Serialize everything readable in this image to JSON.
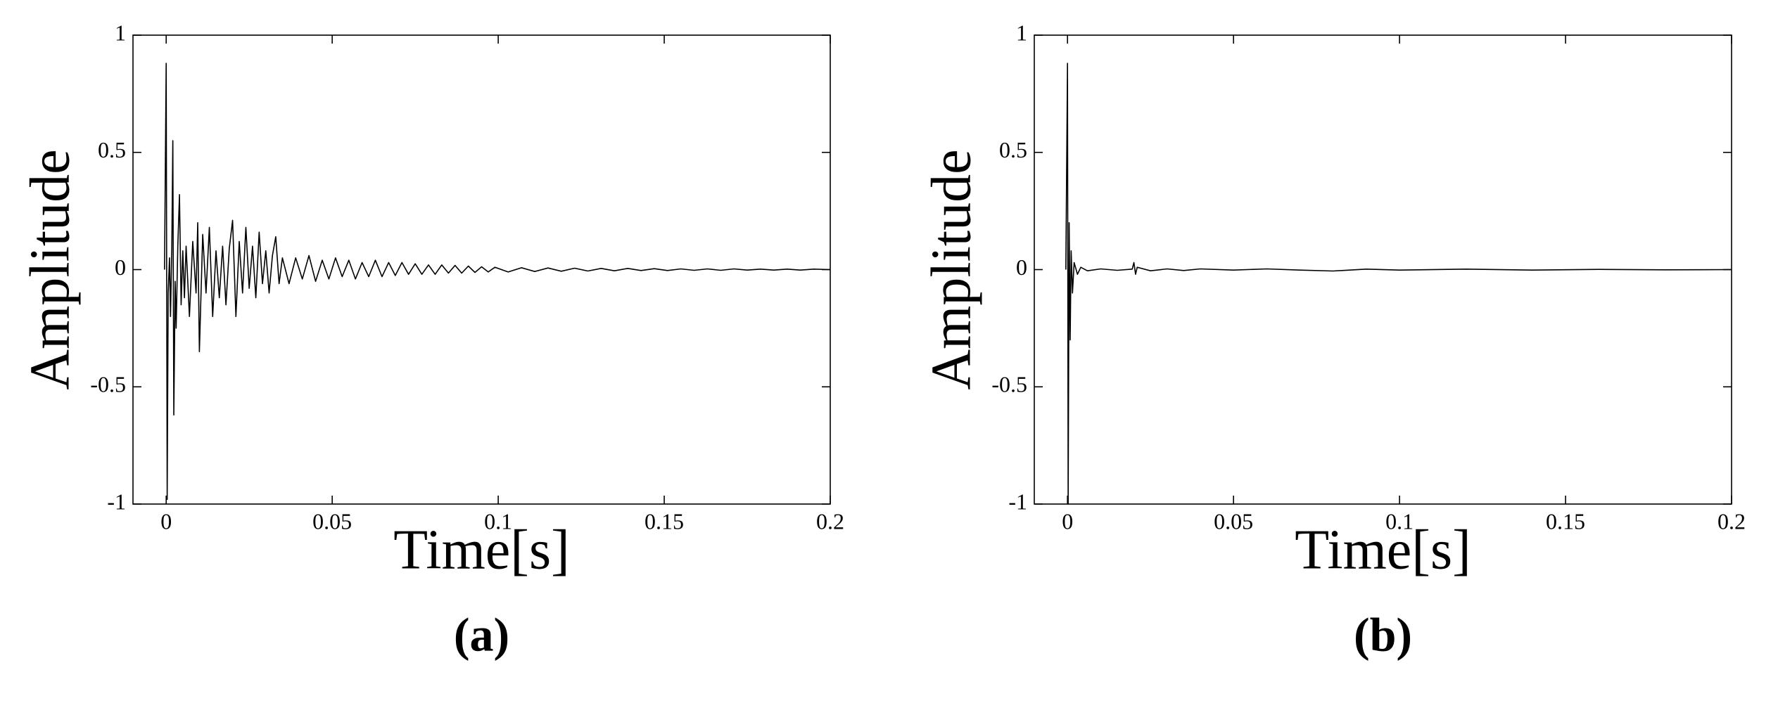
{
  "chart_data": [
    {
      "type": "line",
      "caption": "(a)",
      "xlabel": "Time[s]",
      "ylabel": "Amplitude",
      "color": "#000000",
      "xlim": [
        -0.01,
        0.2
      ],
      "ylim": [
        -1,
        1
      ],
      "xticks": [
        0,
        0.05,
        0.1,
        0.15,
        0.2
      ],
      "yticks": [
        -1,
        -0.5,
        0,
        0.5,
        1
      ],
      "x": [
        -0.0005,
        0,
        0.0003,
        0.0006,
        0.001,
        0.0013,
        0.0017,
        0.002,
        0.0023,
        0.0027,
        0.003,
        0.0035,
        0.004,
        0.0045,
        0.005,
        0.0055,
        0.006,
        0.007,
        0.008,
        0.009,
        0.0095,
        0.01,
        0.011,
        0.012,
        0.013,
        0.014,
        0.015,
        0.016,
        0.017,
        0.018,
        0.019,
        0.02,
        0.021,
        0.022,
        0.023,
        0.024,
        0.025,
        0.026,
        0.027,
        0.028,
        0.029,
        0.03,
        0.031,
        0.032,
        0.033,
        0.034,
        0.035,
        0.037,
        0.039,
        0.041,
        0.043,
        0.045,
        0.047,
        0.049,
        0.051,
        0.053,
        0.055,
        0.057,
        0.059,
        0.061,
        0.063,
        0.065,
        0.067,
        0.069,
        0.071,
        0.073,
        0.075,
        0.077,
        0.079,
        0.081,
        0.083,
        0.085,
        0.087,
        0.089,
        0.091,
        0.093,
        0.095,
        0.097,
        0.099,
        0.103,
        0.107,
        0.111,
        0.115,
        0.119,
        0.123,
        0.127,
        0.131,
        0.135,
        0.139,
        0.143,
        0.147,
        0.151,
        0.155,
        0.159,
        0.163,
        0.167,
        0.171,
        0.175,
        0.179,
        0.183,
        0.187,
        0.191,
        0.195,
        0.2
      ],
      "values": [
        0,
        0.88,
        -0.98,
        -0.1,
        0.05,
        -0.2,
        0.1,
        0.55,
        -0.62,
        -0.05,
        -0.25,
        0.1,
        0.32,
        -0.15,
        0.08,
        -0.12,
        0.1,
        -0.2,
        0.12,
        -0.1,
        0.2,
        -0.35,
        0.15,
        -0.1,
        0.18,
        -0.2,
        0.08,
        -0.12,
        0.1,
        -0.15,
        0.09,
        0.21,
        -0.2,
        0.12,
        -0.1,
        0.18,
        -0.08,
        0.1,
        -0.12,
        0.16,
        -0.06,
        0.08,
        -0.1,
        0.06,
        0.14,
        -0.06,
        0.05,
        -0.06,
        0.05,
        -0.04,
        0.06,
        -0.05,
        0.04,
        -0.04,
        0.05,
        -0.03,
        0.04,
        -0.04,
        0.03,
        -0.03,
        0.04,
        -0.03,
        0.03,
        -0.025,
        0.03,
        -0.02,
        0.025,
        -0.02,
        0.02,
        -0.02,
        0.02,
        -0.015,
        0.018,
        -0.015,
        0.015,
        -0.012,
        0.012,
        -0.01,
        0.01,
        -0.01,
        0.008,
        -0.008,
        0.007,
        -0.007,
        0.006,
        -0.006,
        0.005,
        -0.005,
        0.005,
        -0.004,
        0.004,
        -0.004,
        0.003,
        -0.003,
        0.003,
        -0.003,
        0.003,
        -0.002,
        0.002,
        -0.002,
        0.002,
        -0.002,
        0.002,
        0
      ]
    },
    {
      "type": "line",
      "caption": "(b)",
      "xlabel": "Time[s]",
      "ylabel": "Amplitude",
      "color": "#000000",
      "xlim": [
        -0.01,
        0.2
      ],
      "ylim": [
        -1,
        1
      ],
      "xticks": [
        0,
        0.05,
        0.1,
        0.15,
        0.2
      ],
      "yticks": [
        -1,
        -0.5,
        0,
        0.5,
        1
      ],
      "x": [
        -0.0005,
        0,
        0.0002,
        0.0005,
        0.0008,
        0.0011,
        0.0015,
        0.002,
        0.003,
        0.004,
        0.006,
        0.01,
        0.015,
        0.0195,
        0.02,
        0.0205,
        0.021,
        0.025,
        0.03,
        0.035,
        0.04,
        0.05,
        0.06,
        0.07,
        0.08,
        0.09,
        0.1,
        0.12,
        0.14,
        0.16,
        0.18,
        0.2
      ],
      "values": [
        0,
        0.88,
        -1,
        0.2,
        -0.3,
        0.08,
        -0.1,
        0.03,
        -0.02,
        0.01,
        -0.005,
        0.003,
        -0.003,
        0.002,
        0.03,
        -0.02,
        0.01,
        -0.005,
        0.003,
        -0.004,
        0.003,
        -0.002,
        0.003,
        -0.002,
        -0.006,
        0.002,
        -0.002,
        0.002,
        -0.002,
        0.001,
        -0.001,
        0
      ]
    }
  ]
}
